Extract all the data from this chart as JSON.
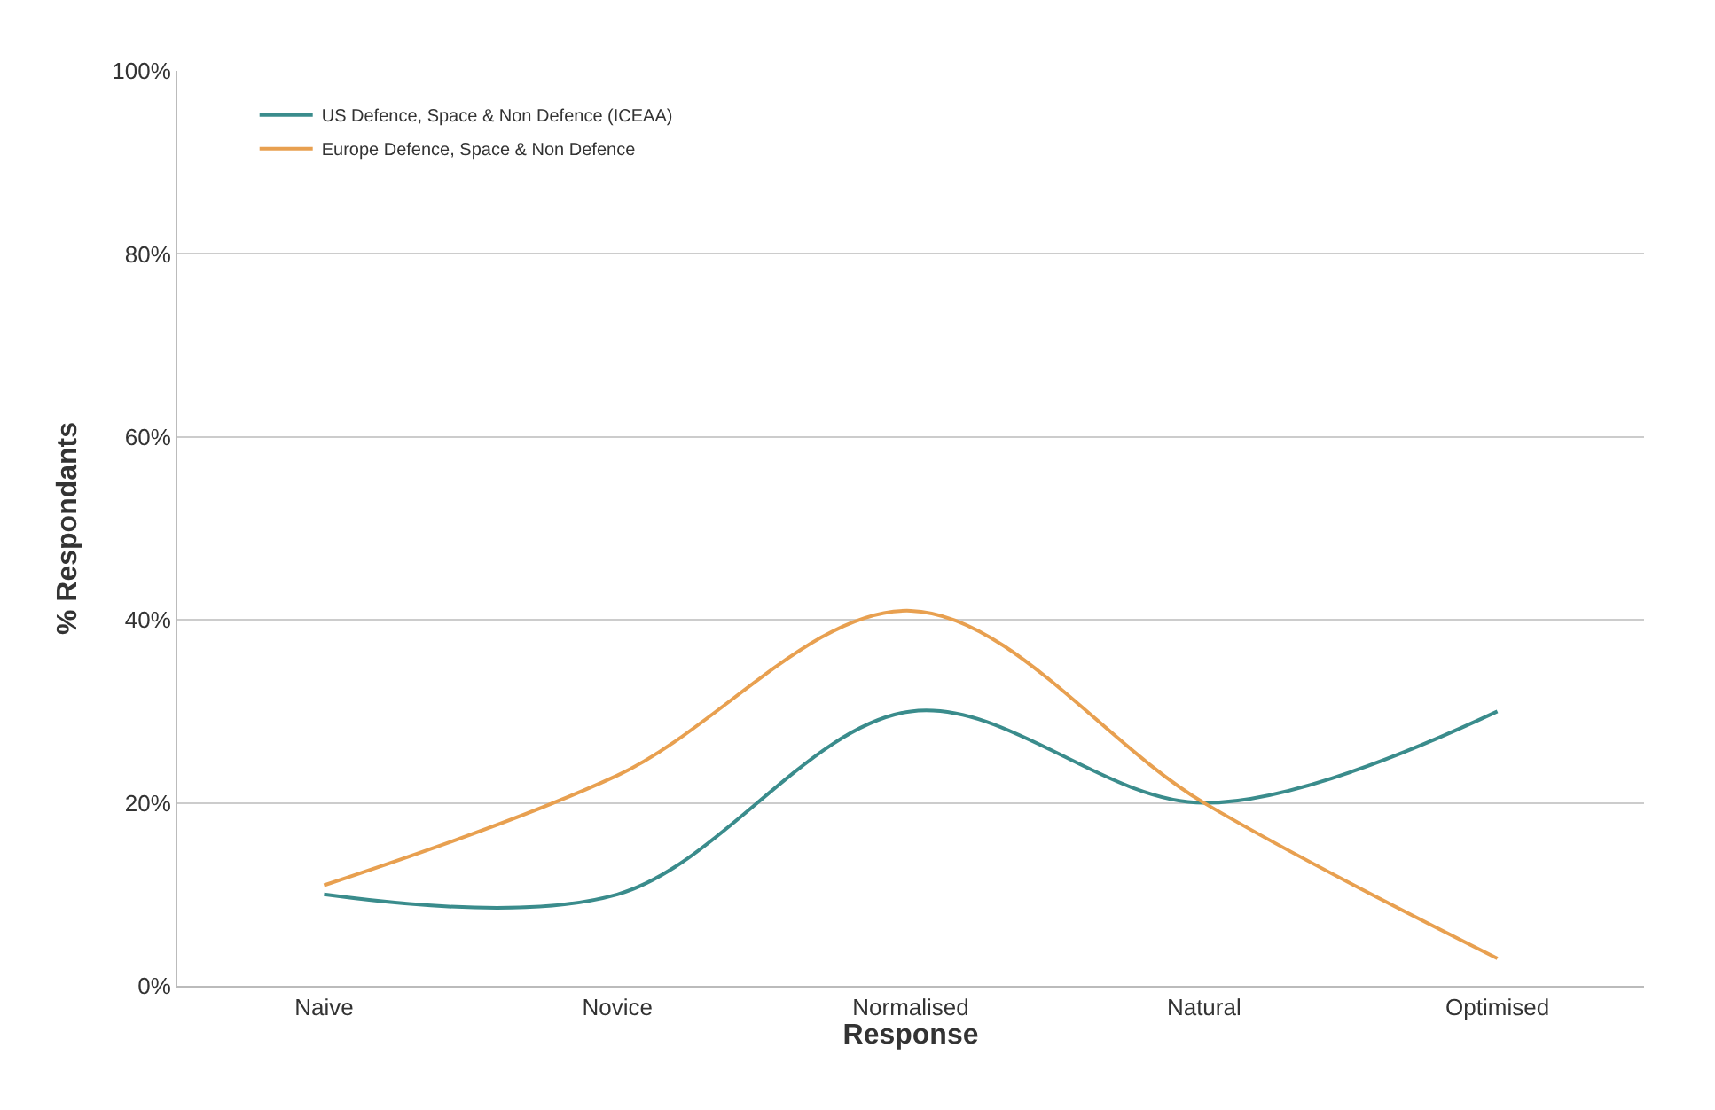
{
  "chart_data": {
    "type": "line",
    "xlabel": "Response",
    "ylabel": "% Respondants",
    "categories": [
      "Naive",
      "Novice",
      "Normalised",
      "Natural",
      "Optimised"
    ],
    "series": [
      {
        "name": "US Defence, Space & Non Defence (ICEAA)",
        "color": "#3a8c8c",
        "values": [
          10,
          10,
          30,
          20,
          30
        ]
      },
      {
        "name": "Europe Defence, Space & Non Defence",
        "color": "#e8a050",
        "values": [
          11,
          23,
          41,
          20,
          3
        ]
      }
    ],
    "ylim": [
      0,
      100
    ],
    "yticks": [
      {
        "value": 0,
        "label": "0%"
      },
      {
        "value": 20,
        "label": "20%"
      },
      {
        "value": 40,
        "label": "40%"
      },
      {
        "value": 60,
        "label": "60%"
      },
      {
        "value": 80,
        "label": "80%"
      },
      {
        "value": 100,
        "label": "100%"
      }
    ],
    "grid": "y",
    "legend": "top left",
    "marker": "none",
    "line_style": "solid"
  }
}
